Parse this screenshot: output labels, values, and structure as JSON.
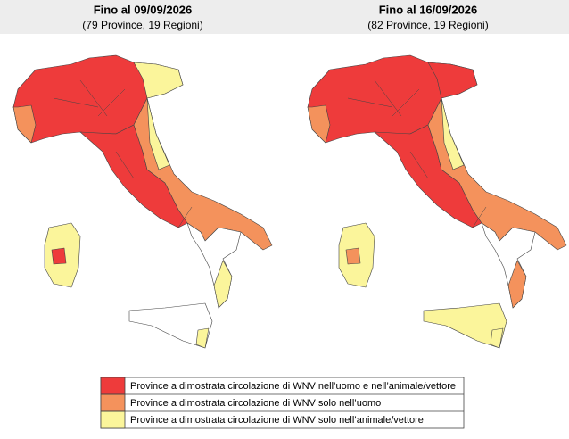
{
  "panels": [
    {
      "title": "Fino al 09/09/2026",
      "subtitle": "(79 Province, 19 Regioni)"
    },
    {
      "title": "Fino al 16/09/2026",
      "subtitle": "(82 Province, 19 Regioni)"
    }
  ],
  "legend": {
    "items": [
      {
        "label": "Province a dimostrata circolazione di WNV nell’uomo e nell’animale/vettore",
        "color": "#ee3b3b"
      },
      {
        "label": "Province a dimostrata circolazione di WNV solo nell’uomo",
        "color": "#f4925c"
      },
      {
        "label": "Province a dimostrata circolazione di WNV solo nell’animale/vettore",
        "color": "#fbf59b"
      }
    ]
  }
}
